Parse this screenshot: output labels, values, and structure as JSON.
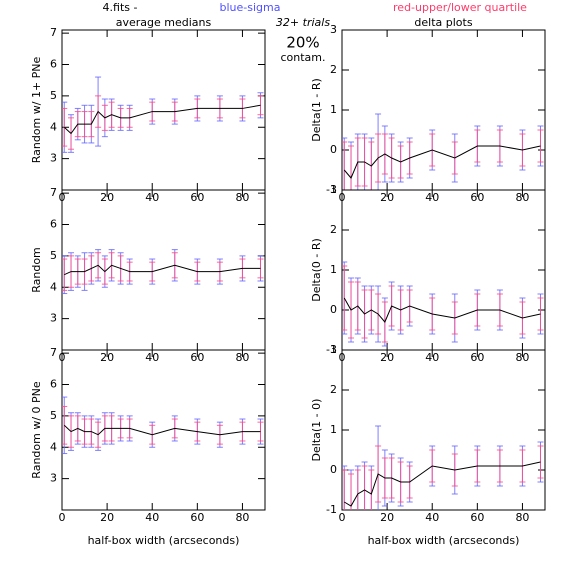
{
  "header": {
    "file": "4.fits  -",
    "blue_note": "blue-sigma",
    "red_note": "red-upper/lower quartile",
    "trials": "32+ trials",
    "contam_value": "20%",
    "contam_label": "contam."
  },
  "chart_data": [
    {
      "type": "line",
      "title": "average medians",
      "ylabel": "Random w/ 1+ PNe",
      "x": [
        1,
        4,
        7,
        10,
        13,
        16,
        19,
        22,
        26,
        30,
        40,
        50,
        60,
        70,
        80,
        88
      ],
      "values": [
        4.0,
        3.8,
        4.1,
        4.1,
        4.1,
        4.5,
        4.3,
        4.4,
        4.3,
        4.3,
        4.5,
        4.5,
        4.6,
        4.6,
        4.6,
        4.7
      ],
      "sigma": [
        0.8,
        0.6,
        0.5,
        0.6,
        0.6,
        1.1,
        0.6,
        0.5,
        0.4,
        0.4,
        0.4,
        0.4,
        0.4,
        0.4,
        0.4,
        0.4
      ],
      "quartile": [
        0.6,
        0.5,
        0.4,
        0.4,
        0.4,
        0.5,
        0.4,
        0.4,
        0.3,
        0.3,
        0.3,
        0.3,
        0.3,
        0.3,
        0.3,
        0.3
      ],
      "color": "#000000",
      "sigma_color": "#6a6aff",
      "quartile_color": "#ff4a8a",
      "xlim": [
        0,
        90
      ],
      "xticks": [
        0,
        20,
        40,
        60,
        80
      ],
      "ylim": [
        2,
        7.1
      ],
      "yticks": [
        3,
        4,
        5,
        6,
        7
      ]
    },
    {
      "type": "line",
      "title": "delta plots",
      "ylabel": "Delta(1 - R)",
      "x": [
        1,
        4,
        7,
        10,
        13,
        16,
        19,
        22,
        26,
        30,
        40,
        50,
        60,
        70,
        80,
        88
      ],
      "values": [
        -0.5,
        -0.7,
        -0.3,
        -0.3,
        -0.4,
        -0.2,
        -0.1,
        -0.2,
        -0.3,
        -0.2,
        0,
        -0.2,
        0.1,
        0.1,
        0,
        0.1
      ],
      "sigma": [
        0.8,
        0.9,
        0.7,
        0.7,
        0.7,
        1.1,
        0.7,
        0.6,
        0.5,
        0.5,
        0.5,
        0.6,
        0.5,
        0.5,
        0.5,
        0.5
      ],
      "quartile": [
        0.7,
        0.8,
        0.6,
        0.6,
        0.6,
        0.6,
        0.5,
        0.5,
        0.4,
        0.4,
        0.4,
        0.4,
        0.4,
        0.4,
        0.4,
        0.4
      ],
      "color": "#000000",
      "sigma_color": "#6a6aff",
      "quartile_color": "#ff4a8a",
      "xlim": [
        0,
        90
      ],
      "xticks": [
        0,
        20,
        40,
        60,
        80
      ],
      "ylim": [
        -1,
        3
      ],
      "yticks": [
        -1,
        0,
        1,
        2,
        3
      ]
    },
    {
      "type": "line",
      "ylabel": "Random",
      "x": [
        1,
        4,
        7,
        10,
        13,
        16,
        19,
        22,
        26,
        30,
        40,
        50,
        60,
        70,
        80,
        88
      ],
      "values": [
        4.4,
        4.5,
        4.5,
        4.5,
        4.6,
        4.7,
        4.5,
        4.7,
        4.6,
        4.5,
        4.5,
        4.7,
        4.5,
        4.5,
        4.6,
        4.6
      ],
      "sigma": [
        0.6,
        0.6,
        0.5,
        0.6,
        0.5,
        0.5,
        0.5,
        0.5,
        0.5,
        0.4,
        0.4,
        0.5,
        0.4,
        0.4,
        0.4,
        0.4
      ],
      "quartile": [
        0.5,
        0.5,
        0.4,
        0.4,
        0.4,
        0.4,
        0.4,
        0.4,
        0.4,
        0.3,
        0.3,
        0.4,
        0.3,
        0.3,
        0.3,
        0.3
      ],
      "color": "#000000",
      "sigma_color": "#6a6aff",
      "quartile_color": "#ff4a8a",
      "xlim": [
        0,
        90
      ],
      "xticks": [
        0,
        20,
        40,
        60,
        80
      ],
      "ylim": [
        2,
        7.1
      ],
      "yticks": [
        3,
        4,
        5,
        6,
        7
      ]
    },
    {
      "type": "line",
      "ylabel": "Delta(0 - R)",
      "x": [
        1,
        4,
        7,
        10,
        13,
        16,
        19,
        22,
        26,
        30,
        40,
        50,
        60,
        70,
        80,
        88
      ],
      "values": [
        0.3,
        0,
        0.1,
        -0.1,
        0,
        -0.1,
        -0.3,
        0.1,
        0,
        0.1,
        -0.1,
        -0.2,
        0,
        0,
        -0.2,
        -0.1
      ],
      "sigma": [
        0.9,
        0.8,
        0.7,
        0.7,
        0.6,
        0.7,
        0.6,
        0.6,
        0.6,
        0.5,
        0.5,
        0.6,
        0.5,
        0.5,
        0.5,
        0.5
      ],
      "quartile": [
        0.8,
        0.7,
        0.6,
        0.6,
        0.5,
        0.5,
        0.5,
        0.5,
        0.5,
        0.4,
        0.4,
        0.4,
        0.4,
        0.4,
        0.4,
        0.4
      ],
      "color": "#000000",
      "sigma_color": "#6a6aff",
      "quartile_color": "#ff4a8a",
      "xlim": [
        0,
        90
      ],
      "xticks": [
        0,
        20,
        40,
        60,
        80
      ],
      "ylim": [
        -1,
        3
      ],
      "yticks": [
        -1,
        0,
        1,
        2,
        3
      ]
    },
    {
      "type": "line",
      "ylabel": "Random w/ 0 PNe",
      "xlabel": "half-box width (arcseconds)",
      "x": [
        1,
        4,
        7,
        10,
        13,
        16,
        19,
        22,
        26,
        30,
        40,
        50,
        60,
        70,
        80,
        88
      ],
      "values": [
        4.7,
        4.5,
        4.6,
        4.5,
        4.5,
        4.4,
        4.6,
        4.6,
        4.6,
        4.6,
        4.4,
        4.6,
        4.5,
        4.4,
        4.5,
        4.5
      ],
      "sigma": [
        0.9,
        0.6,
        0.5,
        0.5,
        0.5,
        0.5,
        0.5,
        0.5,
        0.4,
        0.4,
        0.4,
        0.4,
        0.4,
        0.4,
        0.4,
        0.4
      ],
      "quartile": [
        0.6,
        0.5,
        0.4,
        0.4,
        0.4,
        0.4,
        0.4,
        0.4,
        0.3,
        0.3,
        0.3,
        0.3,
        0.3,
        0.3,
        0.3,
        0.3
      ],
      "color": "#000000",
      "sigma_color": "#6a6aff",
      "quartile_color": "#ff4a8a",
      "xlim": [
        0,
        90
      ],
      "xticks": [
        0,
        20,
        40,
        60,
        80
      ],
      "ylim": [
        2,
        7.1
      ],
      "yticks": [
        3,
        4,
        5,
        6,
        7
      ]
    },
    {
      "type": "line",
      "ylabel": "Delta(1 - 0)",
      "xlabel": "half-box width (arcseconds)",
      "x": [
        1,
        4,
        7,
        10,
        13,
        16,
        19,
        22,
        26,
        30,
        40,
        50,
        60,
        70,
        80,
        88
      ],
      "values": [
        -0.8,
        -0.9,
        -0.6,
        -0.5,
        -0.6,
        -0.1,
        -0.2,
        -0.2,
        -0.3,
        -0.3,
        0.1,
        0,
        0.1,
        0.1,
        0.1,
        0.2
      ],
      "sigma": [
        0.9,
        0.9,
        0.7,
        0.7,
        0.7,
        1.2,
        0.7,
        0.6,
        0.6,
        0.5,
        0.5,
        0.6,
        0.5,
        0.5,
        0.5,
        0.5
      ],
      "quartile": [
        0.8,
        0.8,
        0.6,
        0.6,
        0.6,
        0.7,
        0.5,
        0.5,
        0.5,
        0.4,
        0.4,
        0.4,
        0.4,
        0.4,
        0.4,
        0.4
      ],
      "color": "#000000",
      "sigma_color": "#6a6aff",
      "quartile_color": "#ff4a8a",
      "xlim": [
        0,
        90
      ],
      "xticks": [
        0,
        20,
        40,
        60,
        80
      ],
      "ylim": [
        -1,
        3
      ],
      "yticks": [
        -1,
        0,
        1,
        2,
        3
      ]
    }
  ]
}
